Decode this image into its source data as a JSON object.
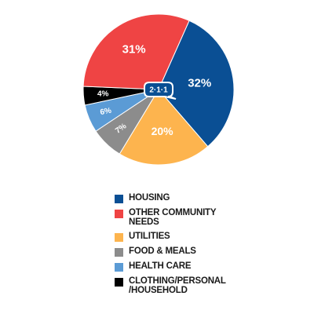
{
  "chart_data": {
    "type": "pie",
    "title": "",
    "center_logo": "2·1·1",
    "slices": [
      {
        "label": "HOUSING",
        "value": 32,
        "display": "32%",
        "color": "#0a4f94"
      },
      {
        "label": "UTILITIES",
        "value": 20,
        "display": "20%",
        "color": "#fdb44e"
      },
      {
        "label": "FOOD & MEALS",
        "value": 7,
        "display": "7%",
        "color": "#8c8c8c"
      },
      {
        "label": "HEALTH CARE",
        "value": 6,
        "display": "6%",
        "color": "#5b9bd5"
      },
      {
        "label": "CLOTHING/PERSONAL\n/HOUSEHOLD",
        "value": 4,
        "display": "4%",
        "color": "#000000"
      },
      {
        "label": "OTHER COMMUNITY\nNEEDS",
        "value": 31,
        "display": "31%",
        "color": "#ef4444"
      }
    ],
    "legend": [
      {
        "label": "HOUSING",
        "color": "#0a4f94"
      },
      {
        "label": "OTHER COMMUNITY\nNEEDS",
        "color": "#ef4444"
      },
      {
        "label": "UTILITIES",
        "color": "#fdb44e"
      },
      {
        "label": "FOOD & MEALS",
        "color": "#8c8c8c"
      },
      {
        "label": "HEALTH CARE",
        "color": "#5b9bd5"
      },
      {
        "label": "CLOTHING/PERSONAL\n/HOUSEHOLD",
        "color": "#000000"
      }
    ],
    "legend_placement": "bottom"
  }
}
